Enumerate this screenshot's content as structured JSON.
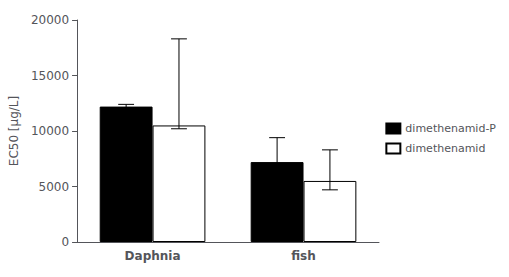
{
  "chart_data": {
    "type": "bar",
    "categories": [
      "Daphnia",
      "fish"
    ],
    "series": [
      {
        "name": "dimethenamid-P",
        "color": "#000000",
        "values": [
          12200,
          7200
        ],
        "yerr_low": [
          200,
          1900
        ],
        "yerr_high": [
          200,
          2200
        ]
      },
      {
        "name": "dimethenamid",
        "color": "#ffffff",
        "values": [
          10500,
          5500
        ],
        "yerr_low": [
          300,
          800
        ],
        "yerr_high": [
          7800,
          2800
        ]
      }
    ],
    "ylabel": "EC50 [µg/L]",
    "ylim": [
      0,
      20000
    ],
    "yticks": [
      0,
      5000,
      10000,
      15000,
      20000
    ],
    "grid": false,
    "legend": "right"
  }
}
